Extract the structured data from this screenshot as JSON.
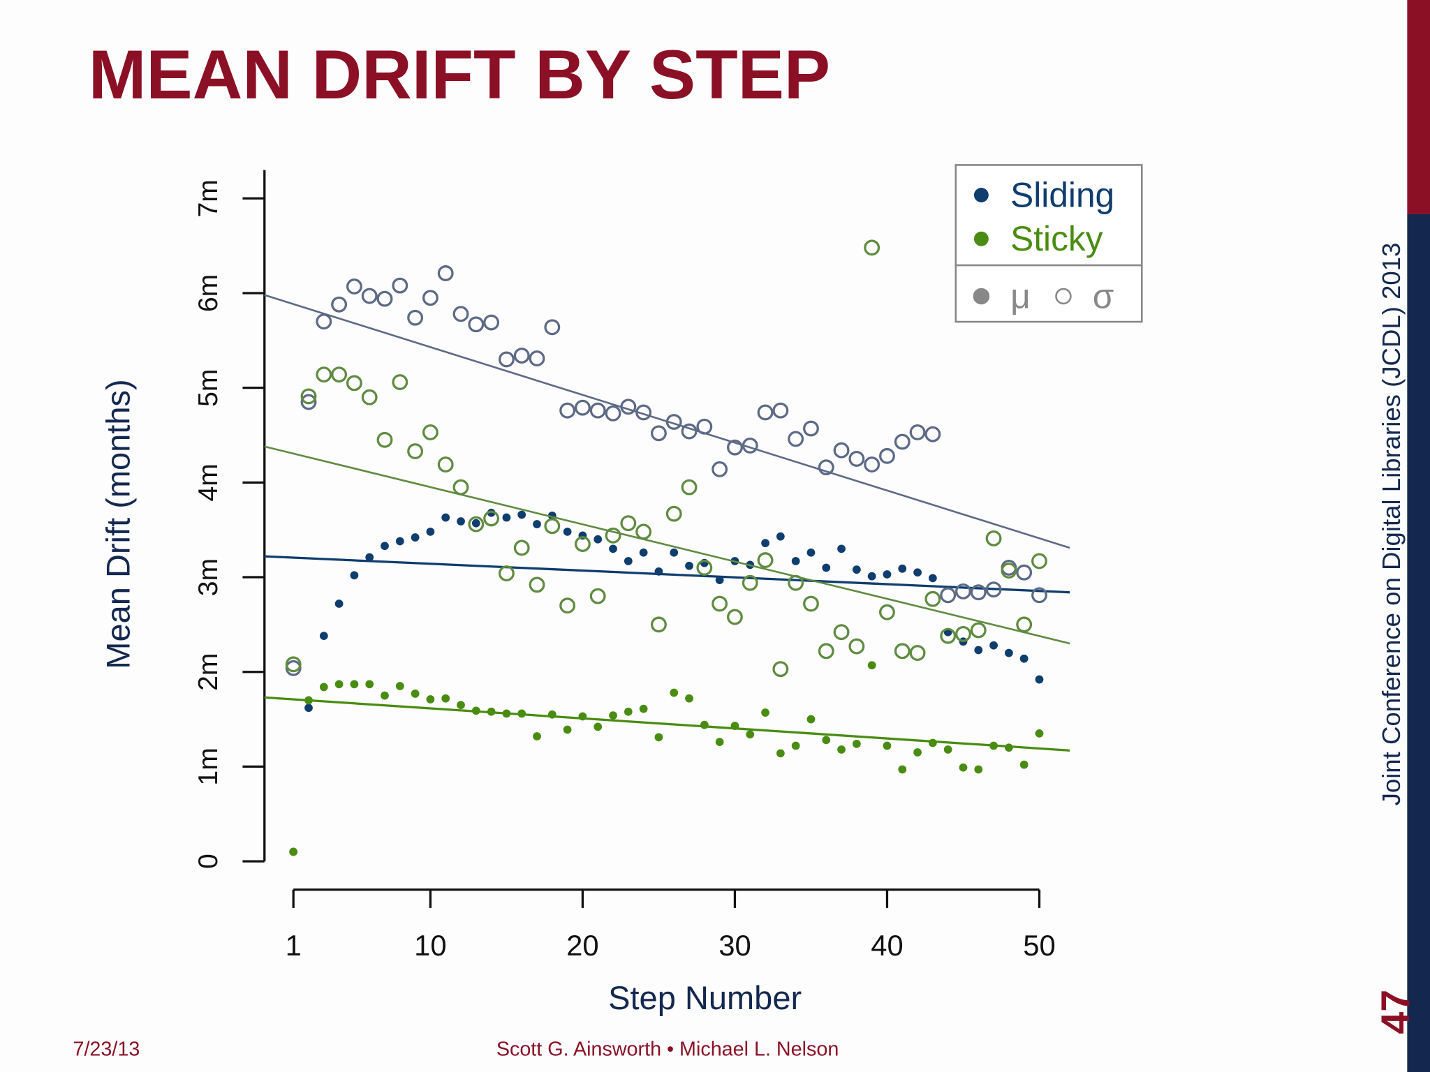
{
  "slide": {
    "title": "MEAN DRIFT BY STEP",
    "date": "7/23/13",
    "authors": "Scott G. Ainsworth • Michael L. Nelson",
    "conference": "Joint Conference on Digital Libraries (JCDL) 2013",
    "page_number": "47"
  },
  "chart_data": {
    "type": "scatter",
    "xlabel": "Step Number",
    "ylabel": "Mean Drift (months)",
    "x": [
      1,
      2,
      3,
      4,
      5,
      6,
      7,
      8,
      9,
      10,
      11,
      12,
      13,
      14,
      15,
      16,
      17,
      18,
      19,
      20,
      21,
      22,
      23,
      24,
      25,
      26,
      27,
      28,
      29,
      30,
      31,
      32,
      33,
      34,
      35,
      36,
      37,
      38,
      39,
      40,
      41,
      42,
      43,
      44,
      45,
      46,
      47,
      48,
      49,
      50
    ],
    "xlim": [
      -0.9,
      52
    ],
    "xticks": [
      1,
      10,
      20,
      30,
      40,
      50
    ],
    "ylim": [
      -0.3,
      7.3
    ],
    "yticks": [
      0,
      {
        "value": 1,
        "label": "1m"
      },
      {
        "value": 2,
        "label": "2m"
      },
      {
        "value": 3,
        "label": "3m"
      },
      {
        "value": 4,
        "label": "4m"
      },
      {
        "value": 5,
        "label": "5m"
      },
      {
        "value": 6,
        "label": "6m"
      },
      {
        "value": 7,
        "label": "7m"
      }
    ],
    "legend_glyphs": [
      "μ",
      "σ"
    ],
    "fit_x": [
      -0.9,
      52
    ],
    "series": [
      {
        "name": "Sliding",
        "color": "#0f3d6e",
        "sd_color": "#5d6a86",
        "values": [
          0.1,
          1.62,
          2.38,
          2.72,
          3.02,
          3.21,
          3.33,
          3.38,
          3.42,
          3.48,
          3.63,
          3.59,
          3.57,
          3.68,
          3.63,
          3.66,
          3.56,
          3.65,
          3.48,
          3.44,
          3.4,
          3.3,
          3.17,
          3.26,
          3.06,
          3.26,
          3.12,
          3.15,
          2.97,
          3.17,
          3.13,
          3.36,
          3.43,
          3.17,
          3.26,
          3.1,
          3.3,
          3.08,
          3.01,
          3.03,
          3.09,
          3.05,
          2.99,
          2.42,
          2.32,
          2.23,
          2.28,
          2.2,
          2.14,
          1.92
        ],
        "sd": [
          2.04,
          4.85,
          5.7,
          5.88,
          6.07,
          5.97,
          5.94,
          6.08,
          5.74,
          5.95,
          6.21,
          5.78,
          5.67,
          5.69,
          5.3,
          5.34,
          5.31,
          5.64,
          4.76,
          4.79,
          4.76,
          4.73,
          4.8,
          4.74,
          4.52,
          4.64,
          4.54,
          4.59,
          4.14,
          4.37,
          4.39,
          4.74,
          4.76,
          4.46,
          4.57,
          4.16,
          4.34,
          4.25,
          4.19,
          4.28,
          4.43,
          4.53,
          4.51,
          2.81,
          2.85,
          2.84,
          2.87,
          3.1,
          3.05,
          2.81
        ],
        "fit_mean": [
          3.22,
          2.84
        ],
        "fit_sd": [
          5.98,
          3.31
        ]
      },
      {
        "name": "Sticky",
        "color": "#4a8c12",
        "sd_color": "#608b42",
        "values": [
          0.1,
          1.7,
          1.84,
          1.87,
          1.87,
          1.87,
          1.75,
          1.85,
          1.77,
          1.71,
          1.72,
          1.65,
          1.59,
          1.58,
          1.56,
          1.56,
          1.32,
          1.55,
          1.39,
          1.53,
          1.42,
          1.54,
          1.58,
          1.61,
          1.31,
          1.78,
          1.72,
          1.44,
          1.26,
          1.43,
          1.34,
          1.57,
          1.14,
          1.22,
          1.5,
          1.28,
          1.18,
          1.24,
          2.07,
          1.22,
          0.97,
          1.15,
          1.25,
          1.18,
          0.99,
          0.97,
          1.22,
          1.2,
          1.02,
          1.35
        ],
        "sd": [
          2.08,
          4.91,
          5.14,
          5.14,
          5.05,
          4.9,
          4.45,
          5.06,
          4.33,
          4.53,
          4.19,
          3.95,
          3.56,
          3.62,
          3.04,
          3.31,
          2.92,
          3.54,
          2.7,
          3.35,
          2.8,
          3.44,
          3.57,
          3.48,
          2.5,
          3.67,
          3.95,
          3.1,
          2.72,
          2.58,
          2.94,
          3.18,
          2.03,
          2.94,
          2.72,
          2.22,
          2.42,
          2.27,
          6.48,
          2.63,
          2.22,
          2.2,
          2.77,
          2.38,
          2.4,
          2.44,
          3.41,
          3.07,
          2.5,
          3.17
        ],
        "fit_mean": [
          1.73,
          1.17
        ],
        "fit_sd": [
          4.38,
          2.3
        ]
      }
    ]
  }
}
